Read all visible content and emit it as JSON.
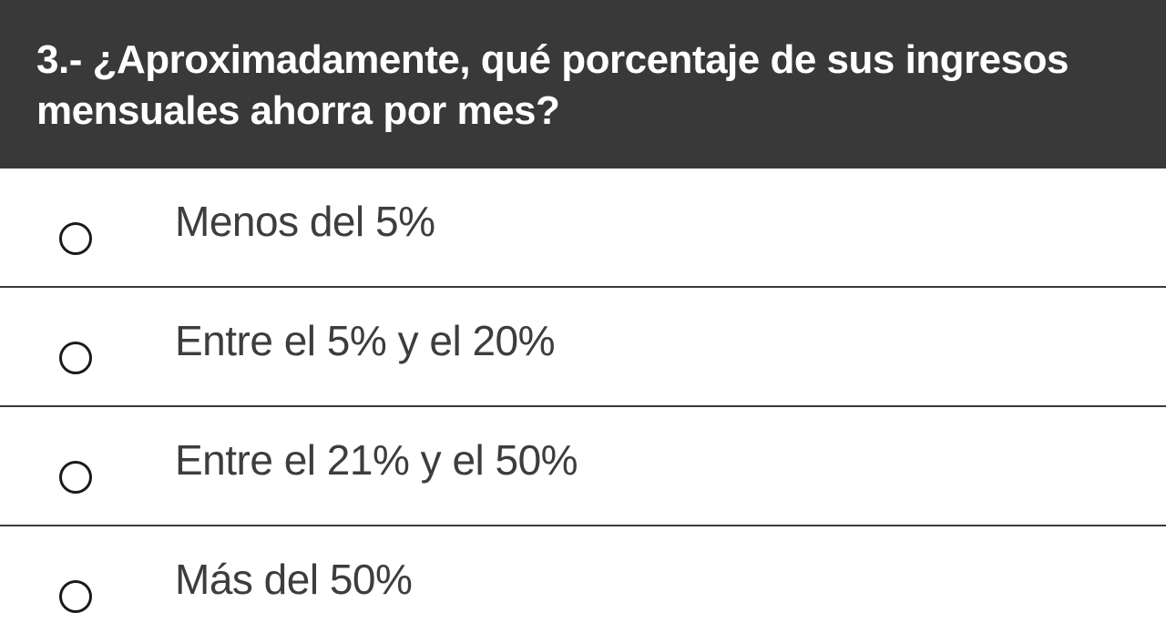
{
  "question": {
    "title": "3.- ¿Aproximadamente, qué porcentaje de sus ingresos mensuales ahorra por mes?"
  },
  "options": [
    {
      "label": "Menos del 5%",
      "selected": false
    },
    {
      "label": "Entre el 5% y el 20%",
      "selected": false
    },
    {
      "label": "Entre el 21% y el 50%",
      "selected": false
    },
    {
      "label": "Más del 50%",
      "selected": false
    }
  ],
  "colors": {
    "header_background": "#393939",
    "header_text": "#ffffff",
    "option_text": "#3d3d3d",
    "divider": "#3a3a3a"
  }
}
